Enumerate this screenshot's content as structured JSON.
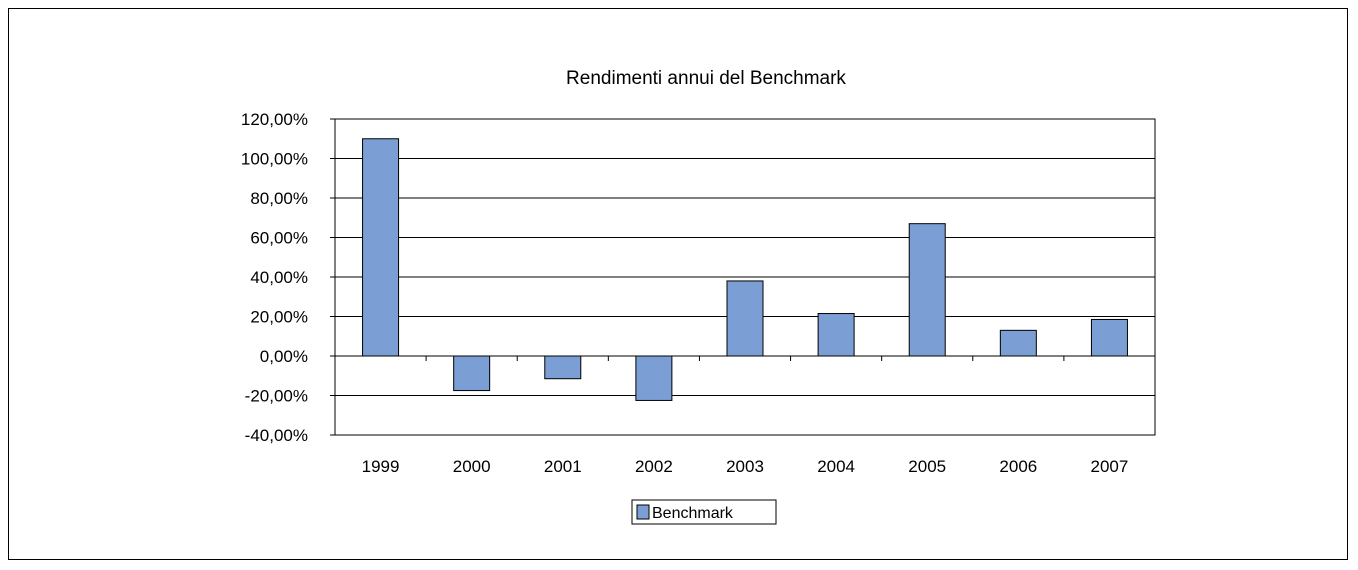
{
  "chart_data": {
    "type": "bar",
    "title": "Rendimenti annui del Benchmark",
    "categories": [
      "1999",
      "2000",
      "2001",
      "2002",
      "2003",
      "2004",
      "2005",
      "2006",
      "2007"
    ],
    "series": [
      {
        "name": "Benchmark",
        "values": [
          110.0,
          -17.5,
          -11.5,
          -22.5,
          38.0,
          21.5,
          67.0,
          13.0,
          18.5
        ]
      }
    ],
    "yticks": [
      "120,00%",
      "100,00%",
      "80,00%",
      "60,00%",
      "40,00%",
      "20,00%",
      "0,00%",
      "-20,00%",
      "-40,00%"
    ],
    "ylim": [
      -40,
      120
    ],
    "grid": true,
    "legend": "bottom",
    "colors": {
      "bar": "#7b9fd4",
      "bar_stroke": "#000000",
      "grid": "#000000"
    }
  }
}
